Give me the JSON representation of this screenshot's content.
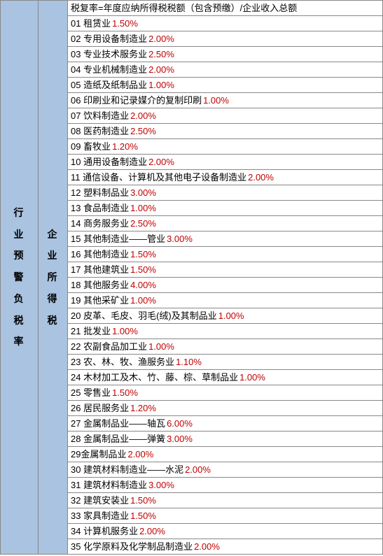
{
  "colors": {
    "headerBg": "#a9c3e0",
    "percentColor": "#c00000",
    "textColor": "#000000",
    "borderColor": "#888888",
    "bgColor": "#ffffff"
  },
  "typography": {
    "bodyFontSize": 13,
    "headerFontSize": 14,
    "headerFontWeight": "bold"
  },
  "col1Label": "行业预警负税率",
  "col2Label": "企业所得税",
  "formula": "税复率=年度应纳所得税税额（包含预缴）/企业收入总额",
  "rows": [
    {
      "num": "01",
      "name": "租赁业",
      "percent": "1.50%"
    },
    {
      "num": "02",
      "name": "专用设备制造业",
      "percent": "2.00%"
    },
    {
      "num": "03",
      "name": "专业技术服务业",
      "percent": "2.50%"
    },
    {
      "num": "04",
      "name": "专业机械制造业",
      "percent": "2.00%"
    },
    {
      "num": "05",
      "name": "造纸及纸制品业",
      "percent": "1.00%"
    },
    {
      "num": "06",
      "name": "印刷业和记录媒介的复制印刷",
      "percent": "1.00%"
    },
    {
      "num": "07",
      "name": "饮料制造业",
      "percent": "2.00%"
    },
    {
      "num": "08",
      "name": "医药制造业",
      "percent": "2.50%"
    },
    {
      "num": "09",
      "name": "畜牧业",
      "percent": "1.20%"
    },
    {
      "num": "10",
      "name": "通用设备制造业",
      "percent": "2.00%"
    },
    {
      "num": "11",
      "name": "通信设备、计算机及其他电子设备制造业",
      "percent": "2.00%"
    },
    {
      "num": "12",
      "name": "塑料制品业",
      "percent": "3.00%"
    },
    {
      "num": "13",
      "name": "食品制造业",
      "percent": "1.00%"
    },
    {
      "num": "14",
      "name": "商务服务业",
      "percent": "2.50%"
    },
    {
      "num": "15",
      "name": "其他制造业——管业",
      "percent": "3.00%"
    },
    {
      "num": "16",
      "name": "其他制造业",
      "percent": "1.50%"
    },
    {
      "num": "17",
      "name": "其他建筑业",
      "percent": "1.50%"
    },
    {
      "num": "18",
      "name": "其他服务业",
      "percent": "4.00%"
    },
    {
      "num": "19",
      "name": "其他采矿业",
      "percent": "1.00%"
    },
    {
      "num": "20",
      "name": "皮革、毛皮、羽毛(绒)及其制品业",
      "percent": "1.00%"
    },
    {
      "num": "21",
      "name": "批发业",
      "percent": "1.00%"
    },
    {
      "num": "22",
      "name": "农副食品加工业",
      "percent": "1.00%"
    },
    {
      "num": "23",
      "name": "农、林、牧、渔服务业",
      "percent": "1.10%"
    },
    {
      "num": "24",
      "name": "木材加工及木、竹、藤、棕、草制品业",
      "percent": "1.00%"
    },
    {
      "num": "25",
      "name": "零售业",
      "percent": "1.50%"
    },
    {
      "num": "26",
      "name": "居民服务业",
      "percent": "1.20%"
    },
    {
      "num": "27",
      "name": "金属制品业——轴瓦",
      "percent": "6.00%"
    },
    {
      "num": "28",
      "name": "金属制品业——弹簧",
      "percent": "3.00%"
    },
    {
      "num": "29",
      "name": "金属制品业",
      "percent": "2.00%",
      "nospace": true
    },
    {
      "num": "30",
      "name": "建筑材料制造业——水泥",
      "percent": "2.00%"
    },
    {
      "num": "31",
      "name": "建筑材料制造业",
      "percent": "3.00%"
    },
    {
      "num": "32",
      "name": "建筑安装业",
      "percent": "1.50%"
    },
    {
      "num": "33",
      "name": "家具制造业",
      "percent": "1.50%"
    },
    {
      "num": "34",
      "name": "计算机服务业",
      "percent": "2.00%"
    },
    {
      "num": "35",
      "name": "化学原料及化学制品制造业",
      "percent": "2.00%"
    }
  ]
}
